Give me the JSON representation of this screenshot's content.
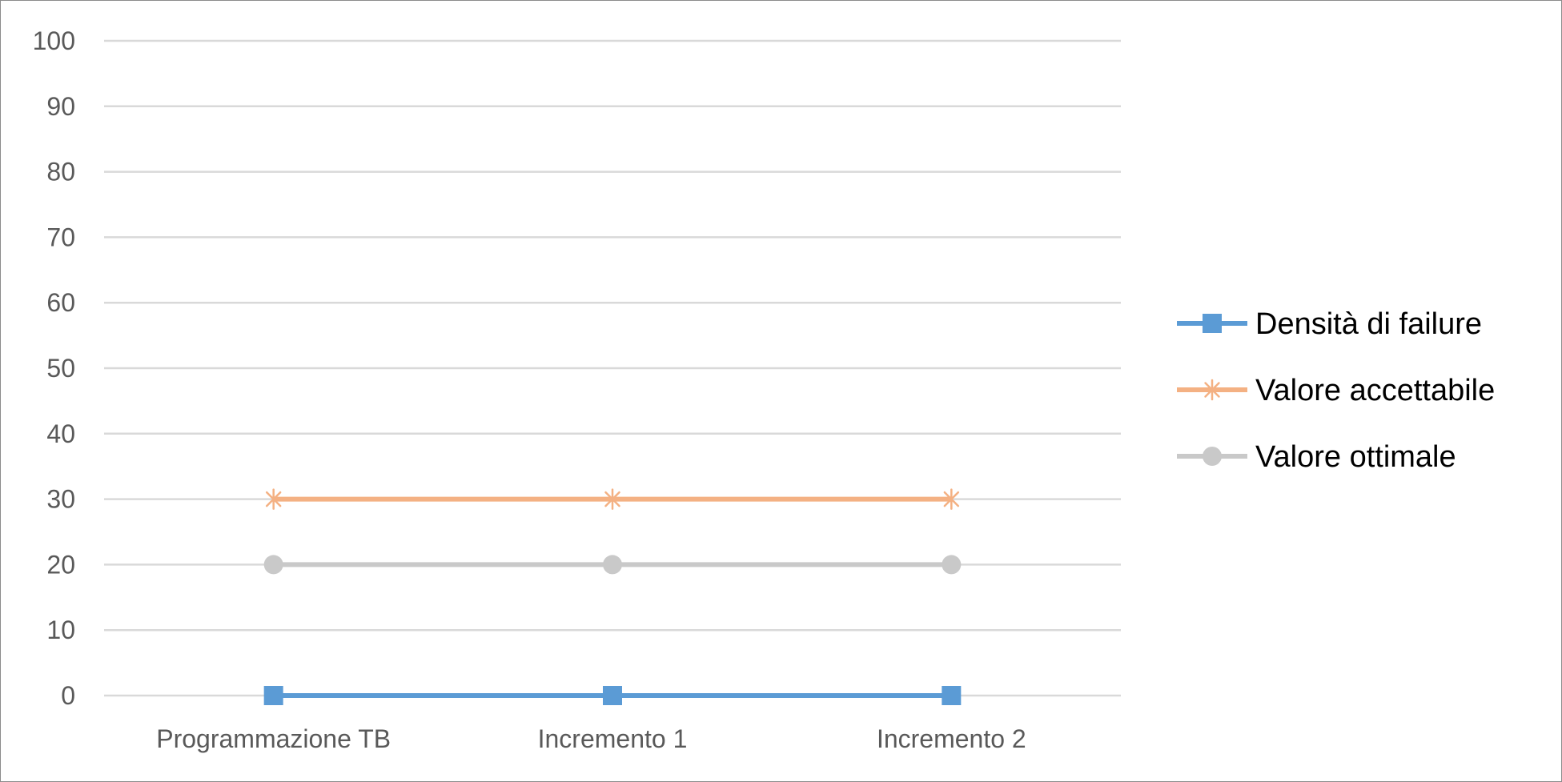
{
  "chart_data": {
    "type": "line",
    "title": "",
    "xlabel": "",
    "ylabel": "",
    "categories": [
      "Programmazione TB",
      "Incremento 1",
      "Incremento 2"
    ],
    "ylim": [
      0,
      100
    ],
    "yticks": [
      "0",
      "10",
      "20",
      "30",
      "40",
      "50",
      "60",
      "70",
      "80",
      "90",
      "100"
    ],
    "grid": true,
    "legend_position": "right",
    "series": [
      {
        "name": "Densità di failure",
        "values": [
          0,
          0,
          0
        ],
        "color": "#5b9bd5",
        "marker": "square"
      },
      {
        "name": "Valore accettabile",
        "values": [
          30,
          30,
          30
        ],
        "color": "#f4b183",
        "marker": "asterisk"
      },
      {
        "name": "Valore ottimale",
        "values": [
          20,
          20,
          20
        ],
        "color": "#c9c9c9",
        "marker": "circle"
      }
    ]
  }
}
